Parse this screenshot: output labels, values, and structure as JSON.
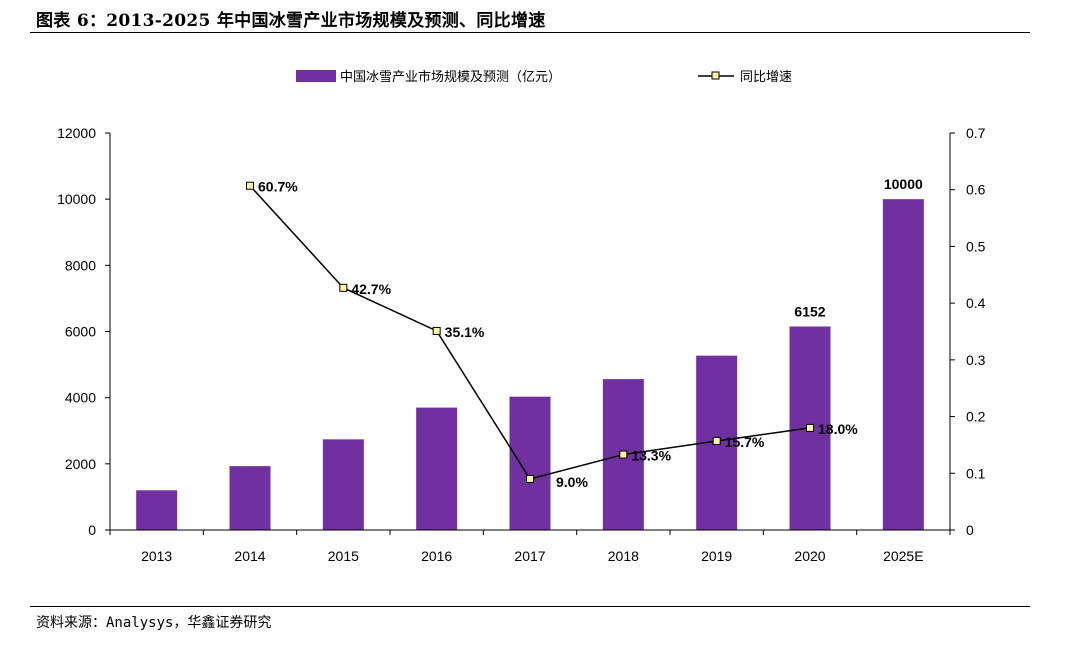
{
  "title": "图表 6：2013-2025 年中国冰雪产业市场规模及预测、同比增速",
  "source": "资料来源：Analysys，华鑫证券研究",
  "chart_data": {
    "type": "bar",
    "categories": [
      "2013",
      "2014",
      "2015",
      "2016",
      "2017",
      "2018",
      "2019",
      "2020",
      "2025E"
    ],
    "series": [
      {
        "name": "中国冰雪产业市场规模及预测（亿元）",
        "type": "bar",
        "axis": "left",
        "color": "#7030A0",
        "values": [
          1200,
          1930,
          2740,
          3700,
          4030,
          4560,
          5270,
          6152,
          10000
        ],
        "value_labels": [
          "",
          "",
          "",
          "",
          "",
          "",
          "",
          "6152",
          "10000"
        ]
      },
      {
        "name": "同比增速",
        "type": "line",
        "axis": "right",
        "color": "#000000",
        "marker_fill": "#FFF2A8",
        "values": [
          null,
          0.607,
          0.427,
          0.351,
          0.09,
          0.133,
          0.157,
          0.18,
          null
        ],
        "value_labels": [
          "",
          "60.7%",
          "42.7%",
          "35.1%",
          "9.0%",
          "13.3%",
          "15.7%",
          "18.0%",
          ""
        ]
      }
    ],
    "y_left": {
      "min": 0,
      "max": 12000,
      "ticks": [
        0,
        2000,
        4000,
        6000,
        8000,
        10000,
        12000
      ]
    },
    "y_right": {
      "min": 0,
      "max": 0.7,
      "ticks": [
        "0",
        "0.1",
        "0.2",
        "0.3",
        "0.4",
        "0.5",
        "0.6",
        "0.7"
      ]
    },
    "grid": false,
    "legend_position": "top"
  }
}
